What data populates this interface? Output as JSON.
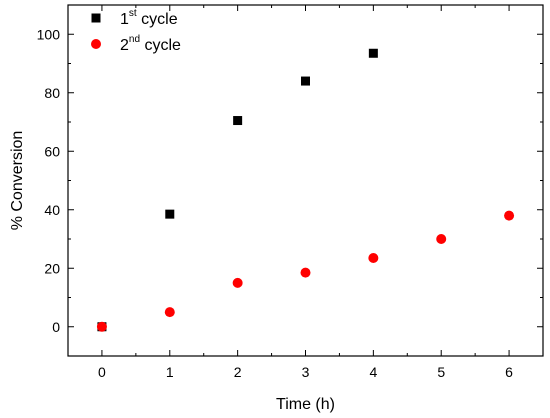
{
  "chart_data": {
    "type": "scatter",
    "title": "",
    "xlabel": "Time (h)",
    "ylabel": "% Conversion",
    "xlim": [
      -0.5,
      6.5
    ],
    "ylim": [
      -10,
      110
    ],
    "x_ticks": [
      0,
      1,
      2,
      3,
      4,
      5,
      6
    ],
    "y_ticks": [
      0,
      20,
      40,
      60,
      80,
      100
    ],
    "grid": false,
    "legend_position": "top-left",
    "series": [
      {
        "name_base": "1",
        "name_sup": "st",
        "name_rest": " cycle",
        "marker": "square",
        "color": "#000000",
        "x": [
          0,
          1,
          2,
          3,
          4
        ],
        "y": [
          0,
          38.5,
          70.5,
          84,
          93.5
        ]
      },
      {
        "name_base": "2",
        "name_sup": "nd",
        "name_rest": " cycle",
        "marker": "circle",
        "color": "#ff0000",
        "x": [
          0,
          1,
          2,
          3,
          4,
          5,
          6
        ],
        "y": [
          0,
          5,
          15,
          18.5,
          23.5,
          30,
          38
        ]
      }
    ]
  }
}
